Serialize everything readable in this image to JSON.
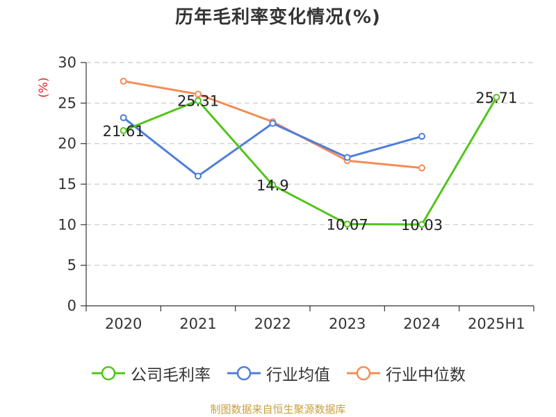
{
  "chart_data": {
    "type": "line",
    "title": "历年毛利率变化情况(%)",
    "ylabel": "(%)",
    "xlabel": "",
    "categories": [
      "2020",
      "2021",
      "2022",
      "2023",
      "2024",
      "2025H1"
    ],
    "ylim": [
      0,
      30
    ],
    "yticks": [
      0,
      5,
      10,
      15,
      20,
      25,
      30
    ],
    "grid": true,
    "legend_position": "bottom",
    "series": [
      {
        "name": "公司毛利率",
        "color": "#52c41a",
        "values": [
          21.61,
          25.31,
          14.9,
          10.07,
          10.03,
          25.71
        ],
        "labels": [
          "21.61",
          "25.31",
          "14.9",
          "10.07",
          "10.03",
          "25.71"
        ]
      },
      {
        "name": "行业均值",
        "color": "#4e7ddb",
        "values": [
          23.2,
          16.0,
          22.5,
          18.3,
          20.9,
          null
        ]
      },
      {
        "name": "行业中位数",
        "color": "#f58c55",
        "values": [
          27.7,
          26.1,
          22.7,
          17.9,
          17.0,
          null
        ]
      }
    ]
  },
  "source_note": "制图数据来自恒生聚源数据库"
}
